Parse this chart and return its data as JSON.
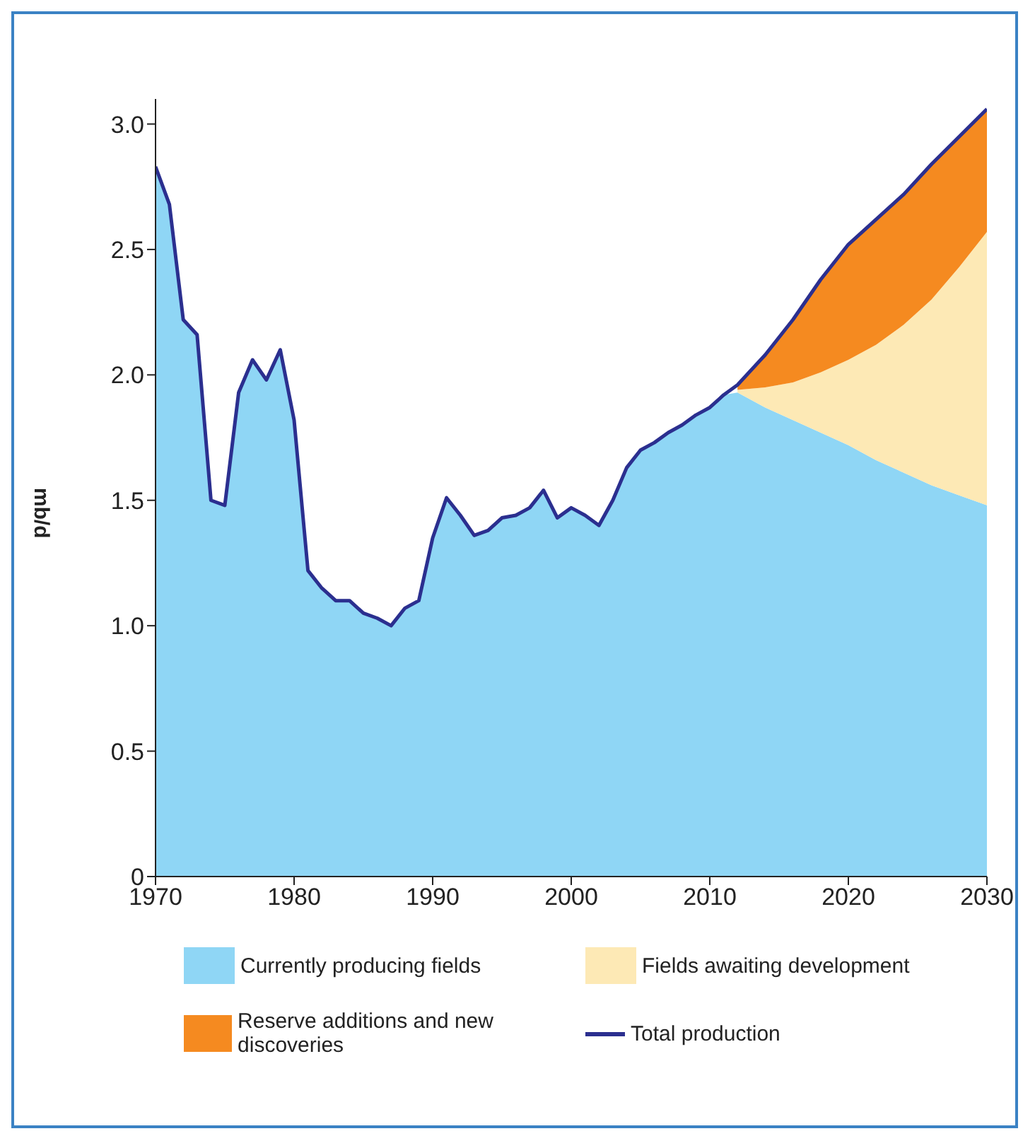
{
  "chart_data": {
    "type": "area",
    "stacked": true,
    "ylabel": "mb/d",
    "xlim": [
      1970,
      2030
    ],
    "xticks": [
      1970,
      1980,
      1990,
      2000,
      2010,
      2020,
      2030
    ],
    "ylim": [
      0,
      3.1
    ],
    "yticks": [
      {
        "value": 0,
        "label": "0"
      },
      0.5,
      {
        "value": 1,
        "label": "1.0"
      },
      1.5,
      {
        "value": 2,
        "label": "2.0"
      },
      2.5,
      {
        "value": 3,
        "label": "3.0"
      }
    ],
    "grid": false,
    "legend": "bottom",
    "x": [
      1970,
      1971,
      1972,
      1973,
      1974,
      1975,
      1976,
      1977,
      1978,
      1979,
      1980,
      1981,
      1982,
      1983,
      1984,
      1985,
      1986,
      1987,
      1988,
      1989,
      1990,
      1991,
      1992,
      1993,
      1994,
      1995,
      1996,
      1997,
      1998,
      1999,
      2000,
      2001,
      2002,
      2003,
      2004,
      2005,
      2006,
      2007,
      2008,
      2009,
      2010,
      2011,
      2012,
      2014,
      2016,
      2018,
      2020,
      2022,
      2024,
      2026,
      2028,
      2030
    ],
    "series": [
      {
        "name": "Currently producing fields",
        "color": "#8fd6f5",
        "values": [
          2.83,
          2.68,
          2.22,
          2.16,
          1.5,
          1.48,
          1.93,
          2.06,
          1.98,
          2.1,
          1.82,
          1.22,
          1.15,
          1.1,
          1.1,
          1.05,
          1.03,
          1.0,
          1.07,
          1.1,
          1.35,
          1.51,
          1.44,
          1.36,
          1.38,
          1.43,
          1.44,
          1.47,
          1.54,
          1.43,
          1.47,
          1.44,
          1.4,
          1.5,
          1.63,
          1.7,
          1.73,
          1.77,
          1.8,
          1.84,
          1.87,
          1.92,
          1.93,
          1.87,
          1.82,
          1.77,
          1.72,
          1.66,
          1.61,
          1.56,
          1.52,
          1.48
        ]
      },
      {
        "name": "Fields awaiting development",
        "color": "#fde9b5",
        "values": [
          null,
          null,
          null,
          null,
          null,
          null,
          null,
          null,
          null,
          null,
          null,
          null,
          null,
          null,
          null,
          null,
          null,
          null,
          null,
          null,
          null,
          null,
          null,
          null,
          null,
          null,
          null,
          null,
          null,
          null,
          null,
          null,
          null,
          null,
          null,
          null,
          null,
          null,
          null,
          null,
          null,
          null,
          0.01,
          0.08,
          0.15,
          0.24,
          0.34,
          0.46,
          0.59,
          0.74,
          0.91,
          1.09
        ]
      },
      {
        "name": "Reserve additions and new discoveries",
        "color": "#f58a20",
        "values": [
          null,
          null,
          null,
          null,
          null,
          null,
          null,
          null,
          null,
          null,
          null,
          null,
          null,
          null,
          null,
          null,
          null,
          null,
          null,
          null,
          null,
          null,
          null,
          null,
          null,
          null,
          null,
          null,
          null,
          null,
          null,
          null,
          null,
          null,
          null,
          null,
          null,
          null,
          null,
          null,
          null,
          null,
          0.02,
          0.13,
          0.25,
          0.37,
          0.46,
          0.5,
          0.52,
          0.54,
          0.52,
          0.49
        ]
      },
      {
        "name": "Total production",
        "type": "line",
        "color": "#2b2f8f",
        "values": [
          2.83,
          2.68,
          2.22,
          2.16,
          1.5,
          1.48,
          1.93,
          2.06,
          1.98,
          2.1,
          1.82,
          1.22,
          1.15,
          1.1,
          1.1,
          1.05,
          1.03,
          1.0,
          1.07,
          1.1,
          1.35,
          1.51,
          1.44,
          1.36,
          1.38,
          1.43,
          1.44,
          1.47,
          1.54,
          1.43,
          1.47,
          1.44,
          1.4,
          1.5,
          1.63,
          1.7,
          1.73,
          1.77,
          1.8,
          1.84,
          1.87,
          1.92,
          1.96,
          2.08,
          2.22,
          2.38,
          2.52,
          2.62,
          2.72,
          2.84,
          2.95,
          3.06
        ]
      }
    ]
  }
}
